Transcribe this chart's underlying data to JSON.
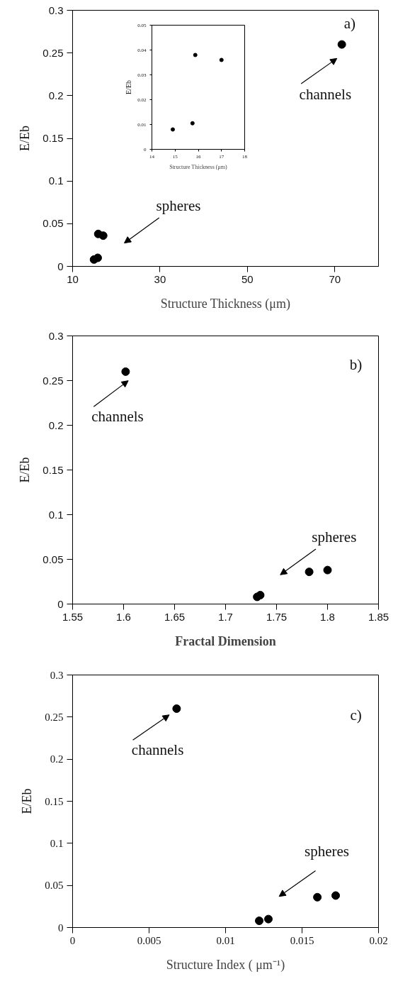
{
  "chart_data": [
    {
      "type": "scatter",
      "xlabel": "Structure Thickness (μm)",
      "ylabel": "E/Eb",
      "x": [
        14.9,
        15.75,
        15.87,
        17.0,
        71.6
      ],
      "values": [
        0.008,
        0.01,
        0.038,
        0.036,
        0.26
      ],
      "color": "#000000",
      "marker": "circle",
      "grid": false,
      "xlim": [
        10,
        80
      ],
      "ylim": [
        0,
        0.3
      ],
      "xticks": [
        10,
        30,
        50,
        70
      ],
      "yticks": [
        0,
        0.05,
        0.1,
        0.15,
        0.2,
        0.25,
        0.3
      ],
      "annotations": [
        "a)",
        "channels",
        "spheres"
      ]
    },
    {
      "type": "scatter",
      "xlabel": "Structure Thickness (μm)",
      "ylabel": "E/Eb",
      "x": [
        14.9,
        15.75,
        15.87,
        17.0
      ],
      "values": [
        0.008,
        0.0105,
        0.038,
        0.036
      ],
      "color": "#000000",
      "marker": "circle",
      "grid": false,
      "xlim": [
        14,
        18
      ],
      "ylim": [
        0,
        0.05
      ],
      "xticks": [
        14,
        15,
        16,
        17,
        18
      ],
      "yticks": [
        0,
        0.01,
        0.02,
        0.03,
        0.04,
        0.05
      ]
    },
    {
      "type": "scatter",
      "xlabel": "Fractal Dimension",
      "ylabel": "E/Eb",
      "x": [
        1.602,
        1.731,
        1.734,
        1.782,
        1.8
      ],
      "values": [
        0.26,
        0.008,
        0.01,
        0.036,
        0.038
      ],
      "color": "#000000",
      "marker": "circle",
      "grid": false,
      "xlim": [
        1.55,
        1.85
      ],
      "ylim": [
        0,
        0.3
      ],
      "xticks": [
        1.55,
        1.6,
        1.65,
        1.7,
        1.75,
        1.8,
        1.85
      ],
      "yticks": [
        0,
        0.05,
        0.1,
        0.15,
        0.2,
        0.25,
        0.3
      ],
      "annotations": [
        "b)",
        "channels",
        "spheres"
      ]
    },
    {
      "type": "scatter",
      "xlabel": "Structure Index ( μm⁻¹)",
      "ylabel": "E/Eb",
      "x": [
        0.0068,
        0.0122,
        0.0128,
        0.016,
        0.0172
      ],
      "values": [
        0.26,
        0.008,
        0.01,
        0.036,
        0.038
      ],
      "color": "#000000",
      "marker": "circle",
      "grid": false,
      "xlim": [
        0,
        0.02
      ],
      "ylim": [
        0,
        0.3
      ],
      "xticks": [
        0,
        0.005,
        0.01,
        0.015,
        0.02
      ],
      "yticks": [
        0,
        0.05,
        0.1,
        0.15,
        0.2,
        0.25,
        0.3
      ],
      "annotations": [
        "c)",
        "channels",
        "spheres"
      ]
    }
  ]
}
